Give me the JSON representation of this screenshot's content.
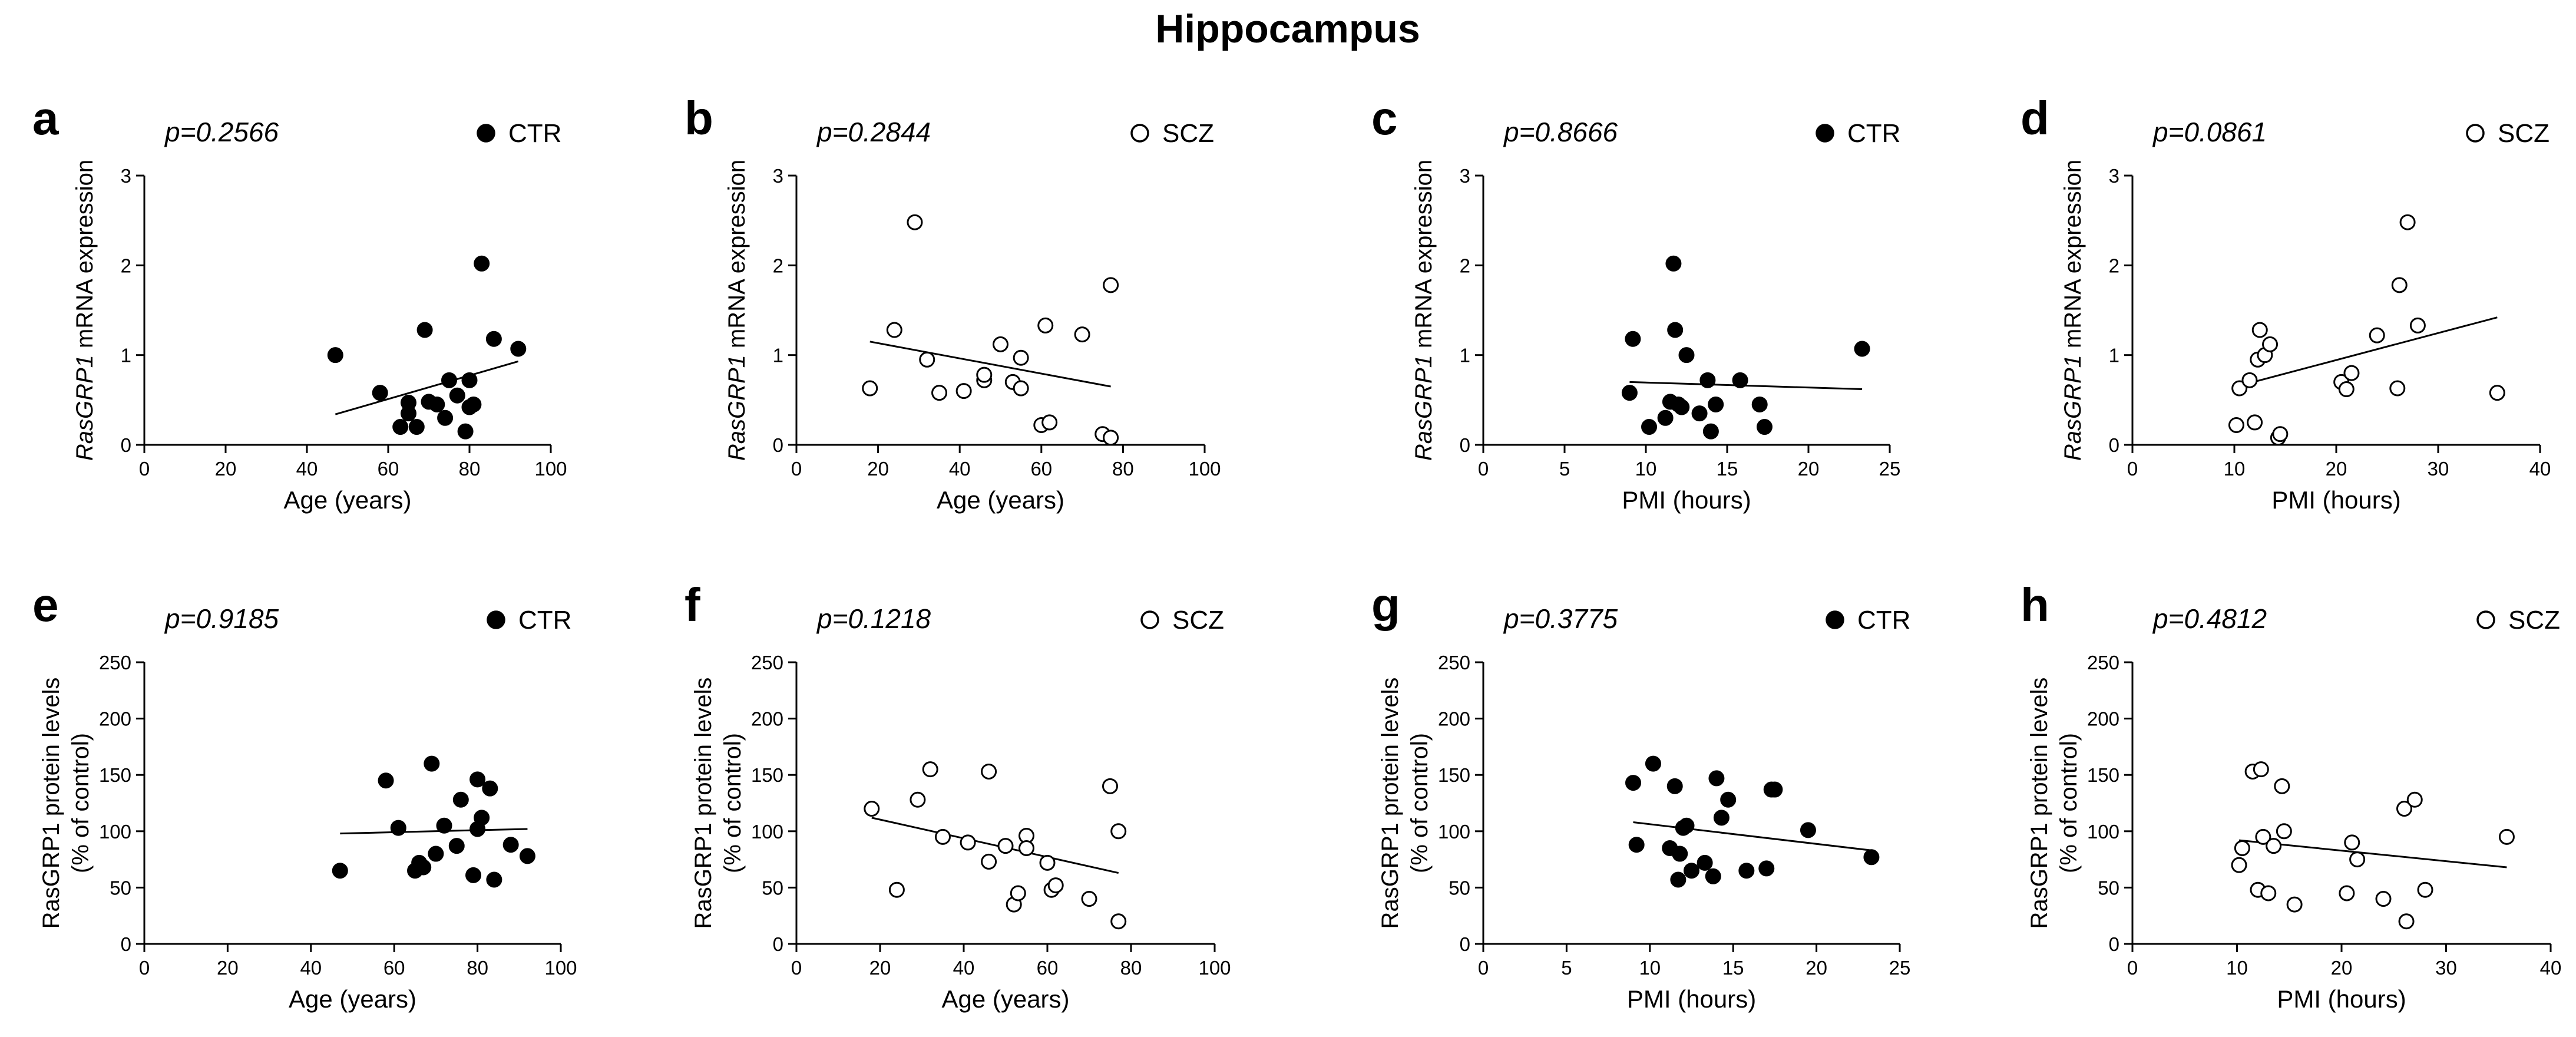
{
  "figure_title": "Hippocampus",
  "colors": {
    "ink": "#000000",
    "background": "#ffffff"
  },
  "chart_data": [
    {
      "panel": "a",
      "type": "scatter",
      "p_value": "p=0.2566",
      "legend": "CTR",
      "marker": "filled",
      "xlabel": "Age (years)",
      "ylabel_italic": "RasGRP1",
      "ylabel_rest": " mRNA expression",
      "xlim": [
        0,
        100
      ],
      "ylim": [
        0,
        3
      ],
      "xticks": [
        0,
        20,
        40,
        60,
        80,
        100
      ],
      "yticks": [
        0,
        1,
        2,
        3
      ],
      "x": [
        47,
        58,
        63,
        65,
        65,
        67,
        69,
        70,
        72,
        74,
        75,
        77,
        79,
        80,
        80,
        81,
        83,
        86,
        92
      ],
      "y": [
        1.0,
        0.58,
        0.2,
        0.47,
        0.35,
        0.2,
        1.28,
        0.48,
        0.45,
        0.3,
        0.72,
        0.55,
        0.15,
        0.42,
        0.72,
        0.45,
        2.02,
        1.18,
        1.07
      ],
      "trend": [
        [
          47,
          0.34
        ],
        [
          92,
          0.93
        ]
      ]
    },
    {
      "panel": "b",
      "type": "scatter",
      "p_value": "p=0.2844",
      "legend": "SCZ",
      "marker": "open",
      "xlabel": "Age (years)",
      "ylabel_italic": "RasGRP1",
      "ylabel_rest": " mRNA expression",
      "xlim": [
        0,
        100
      ],
      "ylim": [
        0,
        3
      ],
      "xticks": [
        0,
        20,
        40,
        60,
        80,
        100
      ],
      "yticks": [
        0,
        1,
        2,
        3
      ],
      "x": [
        18,
        24,
        29,
        32,
        35,
        41,
        46,
        46,
        50,
        53,
        55,
        55,
        60,
        61,
        62,
        70,
        75,
        77,
        77
      ],
      "y": [
        0.63,
        1.28,
        2.48,
        0.95,
        0.58,
        0.6,
        0.72,
        0.78,
        1.12,
        0.7,
        0.63,
        0.97,
        0.22,
        1.33,
        0.25,
        1.23,
        0.12,
        1.78,
        0.08
      ],
      "trend": [
        [
          18,
          1.15
        ],
        [
          77,
          0.65
        ]
      ]
    },
    {
      "panel": "c",
      "type": "scatter",
      "p_value": "p=0.8666",
      "legend": "CTR",
      "marker": "filled",
      "xlabel": "PMI (hours)",
      "ylabel_italic": "RasGRP1",
      "ylabel_rest": " mRNA expression",
      "xlim": [
        0,
        25
      ],
      "ylim": [
        0,
        3
      ],
      "xticks": [
        0,
        5,
        10,
        15,
        20,
        25
      ],
      "yticks": [
        0,
        1,
        2,
        3
      ],
      "x": [
        9.0,
        9.2,
        10.2,
        11.2,
        11.5,
        11.7,
        11.8,
        12.0,
        12.2,
        12.5,
        13.3,
        13.8,
        14.0,
        14.3,
        15.8,
        17.0,
        17.3,
        23.3
      ],
      "y": [
        0.58,
        1.18,
        0.2,
        0.3,
        0.48,
        2.02,
        1.28,
        0.45,
        0.42,
        1.0,
        0.35,
        0.72,
        0.15,
        0.45,
        0.72,
        0.45,
        0.2,
        1.07
      ],
      "trend": [
        [
          9.0,
          0.7
        ],
        [
          23.3,
          0.62
        ]
      ]
    },
    {
      "panel": "d",
      "type": "scatter",
      "p_value": "p=0.0861",
      "legend": "SCZ",
      "marker": "open",
      "xlabel": "PMI (hours)",
      "ylabel_italic": "RasGRP1",
      "ylabel_rest": " mRNA expression",
      "xlim": [
        0,
        40
      ],
      "ylim": [
        0,
        3
      ],
      "xticks": [
        0,
        10,
        20,
        30,
        40
      ],
      "yticks": [
        0,
        1,
        2,
        3
      ],
      "x": [
        10.2,
        10.5,
        11.5,
        12.0,
        12.3,
        12.5,
        13.0,
        13.5,
        14.3,
        14.5,
        20.5,
        21.0,
        21.5,
        24.0,
        26.0,
        26.2,
        27.0,
        28.0,
        35.8
      ],
      "y": [
        0.22,
        0.63,
        0.72,
        0.25,
        0.95,
        1.28,
        1.0,
        1.12,
        0.08,
        0.12,
        0.7,
        0.62,
        0.8,
        1.22,
        0.63,
        1.78,
        2.48,
        1.33,
        0.58
      ],
      "trend": [
        [
          10.2,
          0.65
        ],
        [
          35.8,
          1.42
        ]
      ]
    },
    {
      "panel": "e",
      "type": "scatter",
      "p_value": "p=0.9185",
      "legend": "CTR",
      "marker": "filled",
      "xlabel": "Age (years)",
      "ylabel_lines": [
        "RasGRP1 protein levels",
        "(% of control)"
      ],
      "xlim": [
        0,
        100
      ],
      "ylim": [
        0,
        250
      ],
      "xticks": [
        0,
        20,
        40,
        60,
        80,
        100
      ],
      "yticks": [
        0,
        50,
        100,
        150,
        200,
        250
      ],
      "x": [
        47,
        58,
        61,
        65,
        66,
        67,
        69,
        70,
        72,
        75,
        76,
        79,
        80,
        80,
        81,
        83,
        84,
        88,
        92
      ],
      "y": [
        65,
        145,
        103,
        65,
        72,
        68,
        160,
        80,
        105,
        87,
        128,
        61,
        146,
        102,
        112,
        138,
        57,
        88,
        78
      ],
      "trend": [
        [
          47,
          98
        ],
        [
          92,
          102
        ]
      ]
    },
    {
      "panel": "f",
      "type": "scatter",
      "p_value": "p=0.1218",
      "legend": "SCZ",
      "marker": "open",
      "xlabel": "Age (years)",
      "ylabel_lines": [
        "RasGRP1 protein levels",
        "(% of control)"
      ],
      "xlim": [
        0,
        100
      ],
      "ylim": [
        0,
        250
      ],
      "xticks": [
        0,
        20,
        40,
        60,
        80,
        100
      ],
      "yticks": [
        0,
        50,
        100,
        150,
        200,
        250
      ],
      "x": [
        18,
        24,
        29,
        32,
        35,
        41,
        46,
        46,
        50,
        52,
        53,
        55,
        55,
        60,
        61,
        62,
        70,
        75,
        77,
        77
      ],
      "y": [
        120,
        48,
        128,
        155,
        95,
        90,
        153,
        73,
        87,
        35,
        45,
        96,
        85,
        72,
        48,
        52,
        40,
        140,
        20,
        100
      ],
      "trend": [
        [
          18,
          112
        ],
        [
          77,
          63
        ]
      ]
    },
    {
      "panel": "g",
      "type": "scatter",
      "p_value": "p=0.3775",
      "legend": "CTR",
      "marker": "filled",
      "xlabel": "PMI (hours)",
      "ylabel_lines": [
        "RasGRP1 protein levels",
        "(% of control)"
      ],
      "xlim": [
        0,
        25
      ],
      "ylim": [
        0,
        250
      ],
      "xticks": [
        0,
        5,
        10,
        15,
        20,
        25
      ],
      "yticks": [
        0,
        50,
        100,
        150,
        200,
        250
      ],
      "x": [
        9.0,
        9.2,
        10.2,
        11.2,
        11.5,
        11.7,
        11.8,
        12.0,
        12.2,
        12.5,
        13.3,
        13.8,
        14.0,
        14.3,
        14.7,
        15.8,
        17.0,
        17.3,
        17.5,
        19.5,
        23.3
      ],
      "y": [
        143,
        88,
        160,
        85,
        140,
        57,
        80,
        103,
        105,
        65,
        72,
        60,
        147,
        112,
        128,
        65,
        67,
        137,
        137,
        101,
        77
      ],
      "trend": [
        [
          9.0,
          108
        ],
        [
          23.3,
          83
        ]
      ]
    },
    {
      "panel": "h",
      "type": "scatter",
      "p_value": "p=0.4812",
      "legend": "SCZ",
      "marker": "open",
      "xlabel": "PMI (hours)",
      "ylabel_lines": [
        "RasGRP1 protein levels",
        "(% of control)"
      ],
      "xlim": [
        0,
        40
      ],
      "ylim": [
        0,
        250
      ],
      "xticks": [
        0,
        10,
        20,
        30,
        40
      ],
      "yticks": [
        0,
        50,
        100,
        150,
        200,
        250
      ],
      "x": [
        10.2,
        10.5,
        11.5,
        12.0,
        12.3,
        12.5,
        13.0,
        13.5,
        14.3,
        14.5,
        15.5,
        20.5,
        21.0,
        21.5,
        24.0,
        26.0,
        26.2,
        27.0,
        28.0,
        35.8
      ],
      "y": [
        70,
        85,
        153,
        48,
        155,
        95,
        45,
        87,
        140,
        100,
        35,
        45,
        90,
        75,
        40,
        120,
        20,
        128,
        48,
        95
      ],
      "trend": [
        [
          10.2,
          92
        ],
        [
          35.8,
          68
        ]
      ]
    }
  ]
}
